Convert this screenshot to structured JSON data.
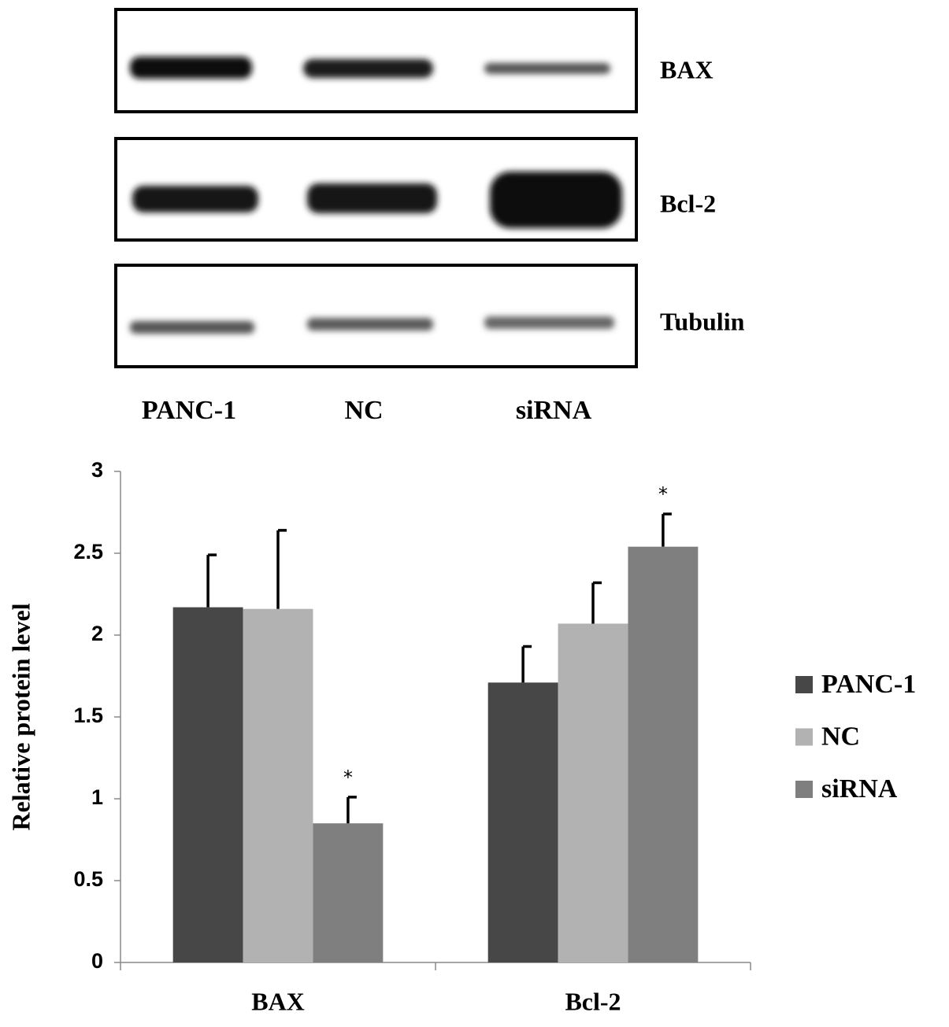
{
  "blot": {
    "rows": [
      "BAX",
      "Bcl-2",
      "Tubulin"
    ],
    "lanes": [
      "PANC-1",
      "NC",
      "siRNA"
    ]
  },
  "chart_data": {
    "type": "bar",
    "y_label": "Relative protein level",
    "categories": [
      "BAX",
      "Bcl-2"
    ],
    "series": [
      {
        "name": "PANC-1",
        "color": "#474747",
        "values": [
          2.17,
          1.71
        ],
        "errors": [
          0.32,
          0.22
        ]
      },
      {
        "name": "NC",
        "color": "#b2b2b2",
        "values": [
          2.16,
          2.07
        ],
        "errors": [
          0.48,
          0.25
        ]
      },
      {
        "name": "siRNA",
        "color": "#7f7f7f",
        "values": [
          0.85,
          2.54
        ],
        "errors": [
          0.16,
          0.2
        ],
        "significance": [
          "*",
          "*"
        ]
      }
    ],
    "ylim": [
      0,
      3
    ],
    "yticks": [
      0,
      0.5,
      1,
      1.5,
      2,
      2.5,
      3
    ],
    "legend": "right"
  }
}
